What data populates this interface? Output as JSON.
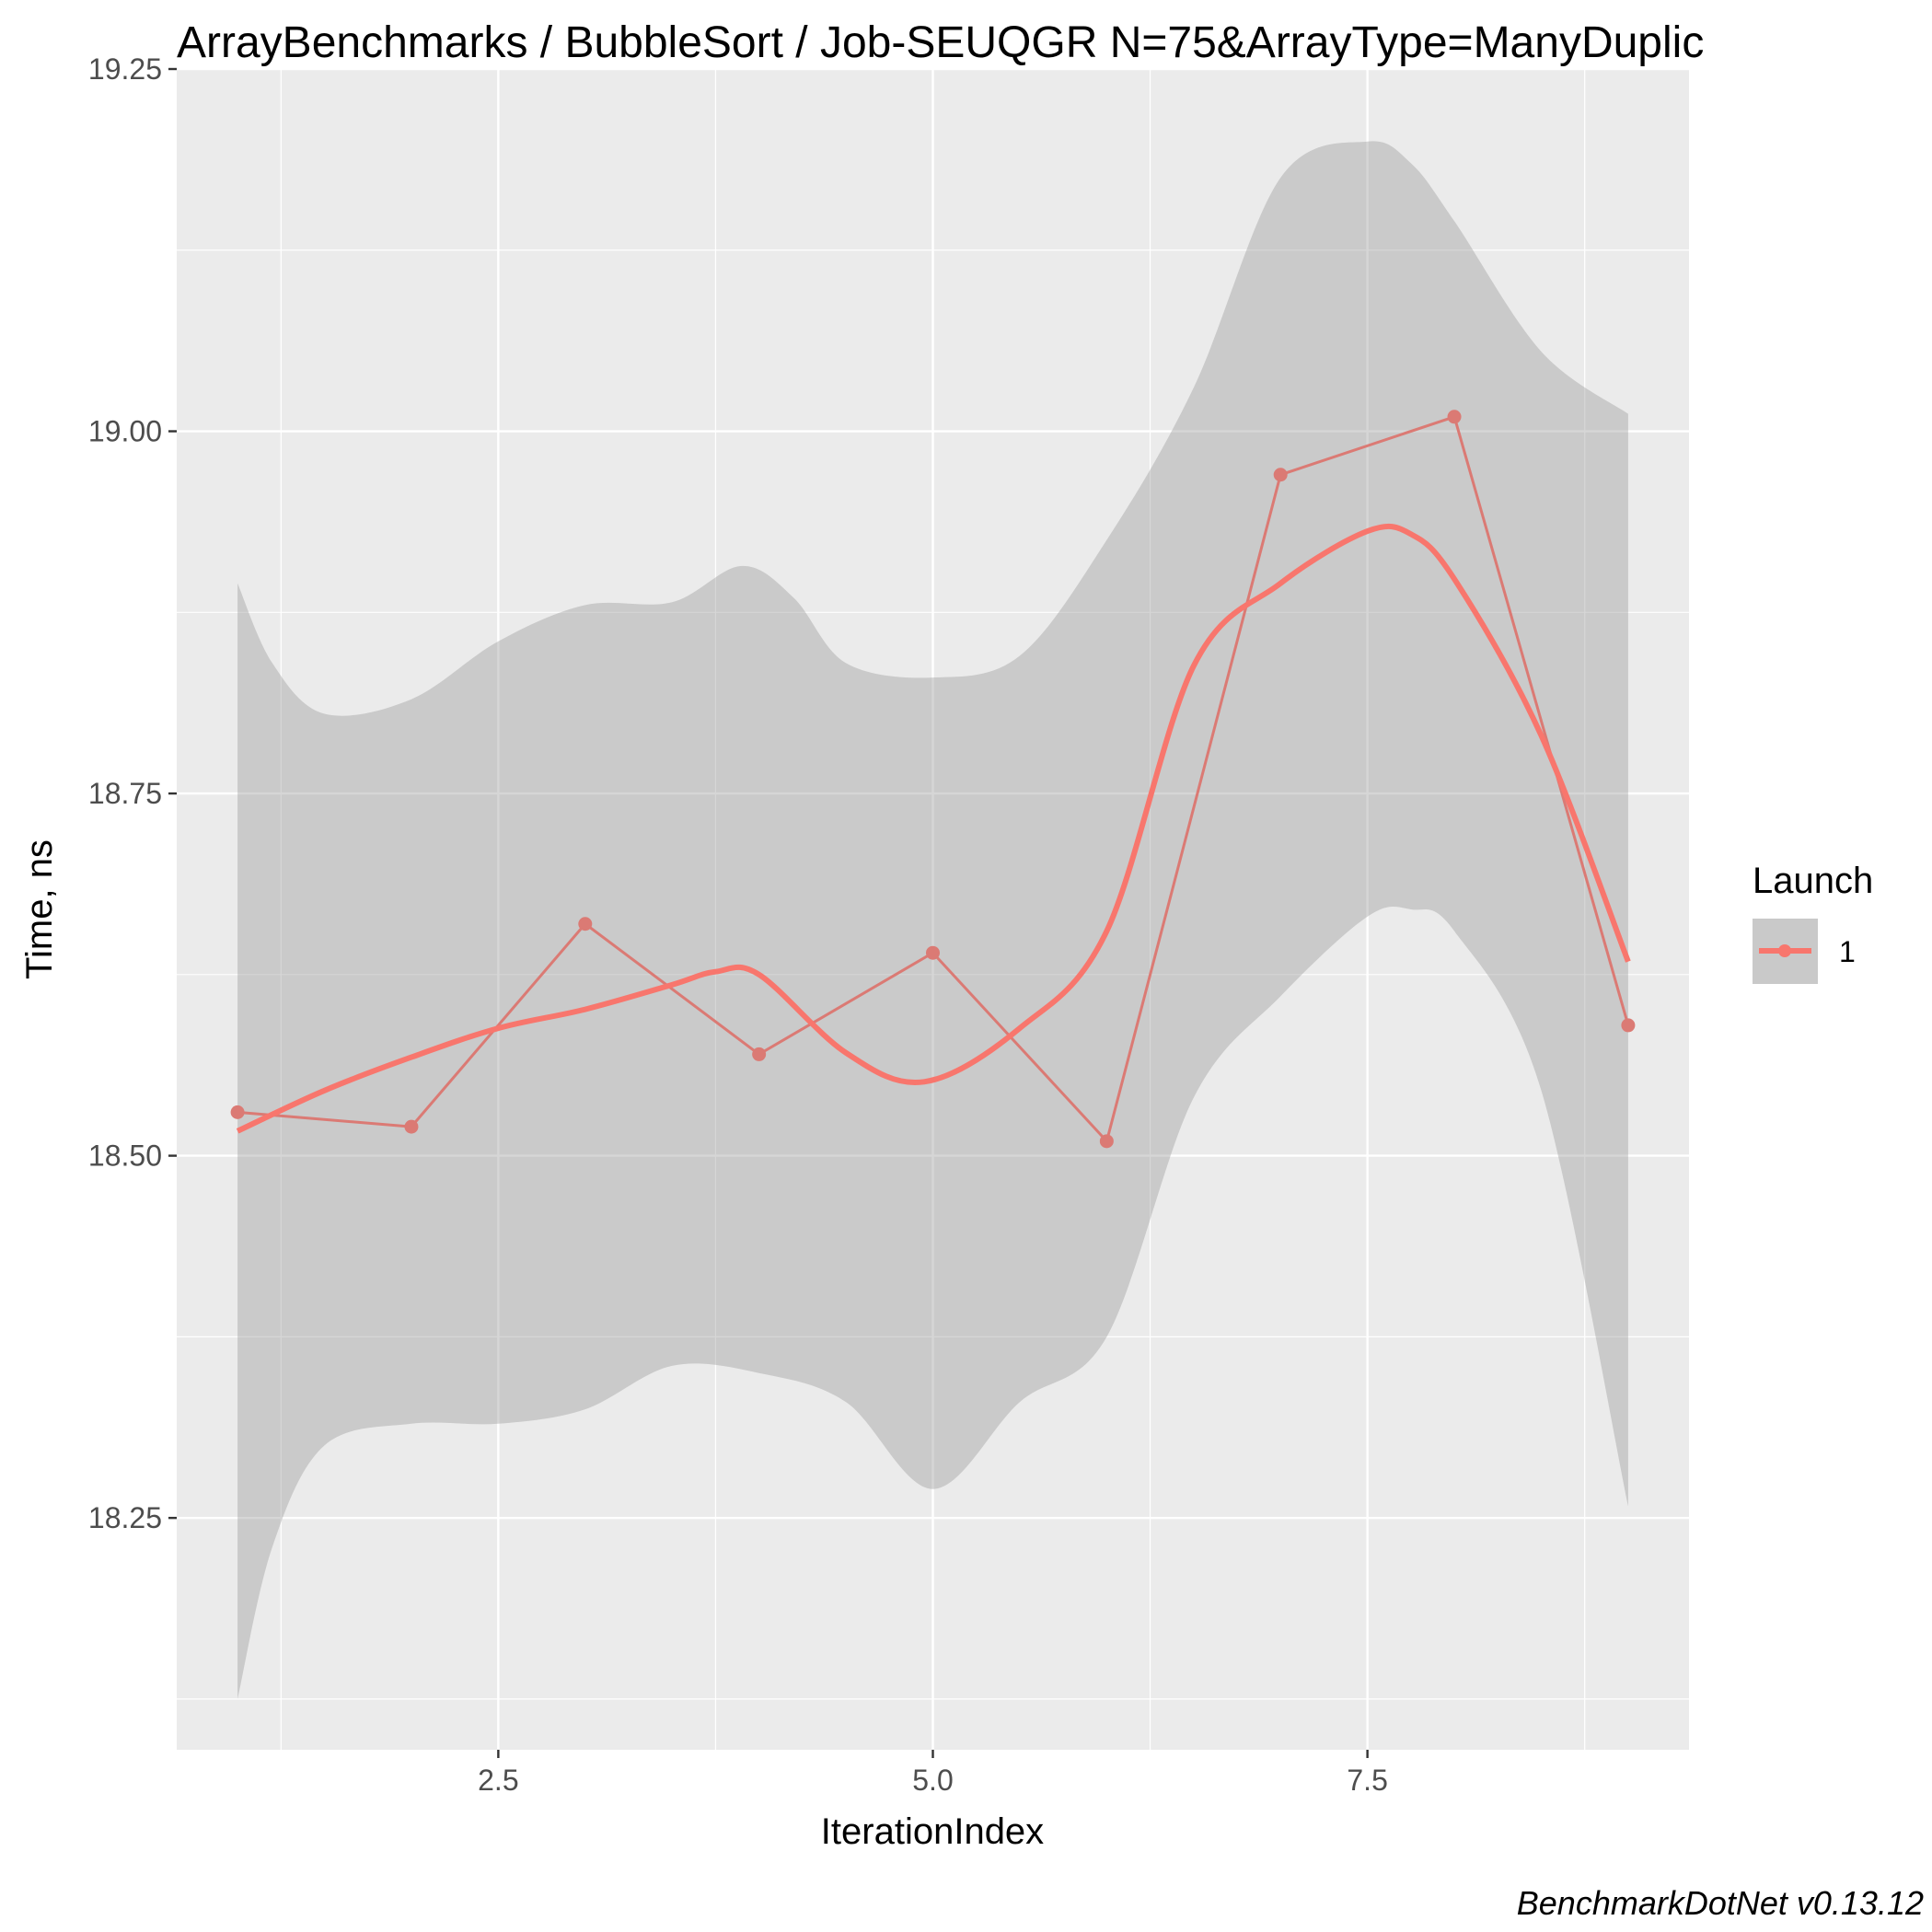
{
  "chart_data": {
    "type": "line",
    "title": "ArrayBenchmarks / BubbleSort / Job-SEUQGR N=75&ArrayType=ManyDuplic",
    "xlabel": "IterationIndex",
    "ylabel": "Time, ns",
    "caption": "BenchmarkDotNet v0.13.12",
    "xlim": [
      0.65,
      9.35
    ],
    "ylim": [
      18.09,
      19.25
    ],
    "x_ticks": [
      2.5,
      5.0,
      7.5
    ],
    "x_tick_labels": [
      "2.5",
      "5.0",
      "7.5"
    ],
    "y_ticks": [
      18.25,
      18.5,
      18.75,
      19.0,
      19.25
    ],
    "y_tick_labels": [
      "18.25",
      "18.50",
      "18.75",
      "19.00",
      "19.25"
    ],
    "grid": true,
    "legend": {
      "title": "Launch",
      "position": "right",
      "entries": [
        "1"
      ]
    },
    "series": [
      {
        "name": "1",
        "color": "#F8766D",
        "x": [
          1,
          2,
          3,
          4,
          5,
          6,
          7,
          8,
          9
        ],
        "values": [
          18.53,
          18.52,
          18.66,
          18.57,
          18.64,
          18.51,
          18.97,
          19.01,
          18.59
        ],
        "smooth": [
          [
            1.0,
            18.517
          ],
          [
            1.5,
            18.545
          ],
          [
            2.0,
            18.568
          ],
          [
            2.5,
            18.588
          ],
          [
            3.0,
            18.601
          ],
          [
            3.5,
            18.618
          ],
          [
            3.75,
            18.627
          ],
          [
            4.0,
            18.625
          ],
          [
            4.5,
            18.571
          ],
          [
            4.95,
            18.551
          ],
          [
            5.5,
            18.588
          ],
          [
            6.0,
            18.655
          ],
          [
            6.5,
            18.838
          ],
          [
            7.0,
            18.895
          ],
          [
            7.5,
            18.931
          ],
          [
            7.75,
            18.929
          ],
          [
            8.0,
            18.898
          ],
          [
            8.5,
            18.79
          ],
          [
            9.0,
            18.634
          ]
        ],
        "band_upper": [
          [
            1.0,
            18.895
          ],
          [
            1.2,
            18.84
          ],
          [
            1.5,
            18.805
          ],
          [
            2.0,
            18.815
          ],
          [
            2.5,
            18.855
          ],
          [
            3.0,
            18.88
          ],
          [
            3.5,
            18.882
          ],
          [
            3.9,
            18.907
          ],
          [
            4.2,
            18.885
          ],
          [
            4.5,
            18.84
          ],
          [
            5.0,
            18.83
          ],
          [
            5.5,
            18.845
          ],
          [
            6.0,
            18.925
          ],
          [
            6.5,
            19.03
          ],
          [
            7.0,
            19.175
          ],
          [
            7.5,
            19.2
          ],
          [
            7.75,
            19.185
          ],
          [
            8.0,
            19.145
          ],
          [
            8.5,
            19.055
          ],
          [
            9.0,
            19.012
          ]
        ],
        "band_lower": [
          [
            1.0,
            18.125
          ],
          [
            1.2,
            18.23
          ],
          [
            1.5,
            18.3
          ],
          [
            2.0,
            18.315
          ],
          [
            2.5,
            18.315
          ],
          [
            3.0,
            18.325
          ],
          [
            3.5,
            18.355
          ],
          [
            4.0,
            18.35
          ],
          [
            4.5,
            18.33
          ],
          [
            5.0,
            18.27
          ],
          [
            5.5,
            18.33
          ],
          [
            6.0,
            18.375
          ],
          [
            6.5,
            18.54
          ],
          [
            7.0,
            18.61
          ],
          [
            7.5,
            18.665
          ],
          [
            7.75,
            18.67
          ],
          [
            8.0,
            18.655
          ],
          [
            8.5,
            18.545
          ],
          [
            9.0,
            18.258
          ]
        ]
      }
    ]
  }
}
